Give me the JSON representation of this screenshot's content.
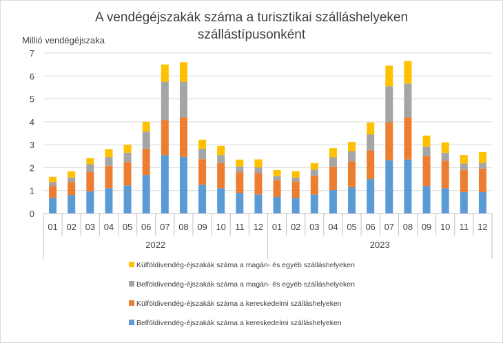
{
  "chart_data": {
    "type": "bar",
    "stacked": true,
    "title_lines": [
      "A vendégéjszakák száma a turisztikai szálláshelyeken",
      "szállástípusonként"
    ],
    "ylabel": "Millió vendégéjszaka",
    "ylim": [
      0,
      7
    ],
    "yticks": [
      "0",
      "1",
      "2",
      "3",
      "4",
      "5",
      "6",
      "7"
    ],
    "grid": true,
    "legend_position": "bottom",
    "groups": [
      {
        "label": "2022",
        "months": [
          "01",
          "02",
          "03",
          "04",
          "05",
          "06",
          "07",
          "08",
          "09",
          "10",
          "11",
          "12"
        ]
      },
      {
        "label": "2023",
        "months": [
          "01",
          "02",
          "03",
          "04",
          "05",
          "06",
          "07",
          "08",
          "09",
          "10",
          "11",
          "12"
        ]
      }
    ],
    "series": [
      {
        "name": "Belföldivendég-éjszakák száma a kereskedelmi szálláshelyeken",
        "color": "#5b9bd5",
        "values": [
          0.68,
          0.8,
          0.97,
          1.1,
          1.22,
          1.68,
          2.55,
          2.47,
          1.25,
          1.1,
          0.9,
          0.83,
          0.72,
          0.68,
          0.83,
          1.02,
          1.15,
          1.5,
          2.33,
          2.35,
          1.2,
          1.1,
          0.93,
          0.93
        ]
      },
      {
        "name": "Külföldivendég-éjszakák száma a kereskedelmi szálláshelyeken",
        "color": "#ed7d31",
        "values": [
          0.52,
          0.57,
          0.85,
          0.98,
          1.03,
          1.15,
          1.52,
          1.73,
          1.12,
          1.1,
          0.9,
          0.93,
          0.73,
          0.72,
          0.82,
          1.03,
          1.12,
          1.25,
          1.65,
          1.85,
          1.3,
          1.2,
          0.97,
          1.03
        ]
      },
      {
        "name": "Belföldivendég-éjszakák száma a magán- és egyéb szálláshelyeken",
        "color": "#a5a5a5",
        "values": [
          0.17,
          0.2,
          0.33,
          0.38,
          0.4,
          0.75,
          1.68,
          1.55,
          0.45,
          0.35,
          0.25,
          0.25,
          0.18,
          0.17,
          0.27,
          0.4,
          0.45,
          0.7,
          1.57,
          1.47,
          0.42,
          0.35,
          0.28,
          0.25
        ]
      },
      {
        "name": "Külföldivendég-éjszakák száma a magán- és egyéb szálláshelyeken",
        "color": "#ffc000",
        "values": [
          0.23,
          0.27,
          0.27,
          0.35,
          0.35,
          0.42,
          0.75,
          0.85,
          0.4,
          0.4,
          0.3,
          0.35,
          0.27,
          0.28,
          0.28,
          0.4,
          0.4,
          0.52,
          0.9,
          0.98,
          0.48,
          0.45,
          0.37,
          0.47
        ]
      }
    ]
  }
}
